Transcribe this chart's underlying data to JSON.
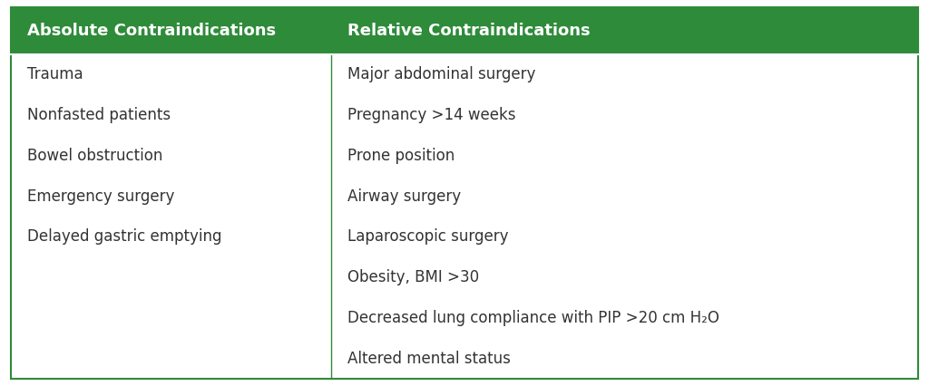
{
  "header_bg_color": "#2E8B3A",
  "header_text_color": "#FFFFFF",
  "body_bg_color": "#FFFFFF",
  "border_color": "#2E8B3A",
  "col1_header": "Absolute Contraindications",
  "col2_header": "Relative Contraindications",
  "col1_items": [
    "Trauma",
    "Nonfasted patients",
    "Bowel obstruction",
    "Emergency surgery",
    "Delayed gastric emptying",
    "",
    "",
    ""
  ],
  "col2_items": [
    "Major abdominal surgery",
    "Pregnancy >14 weeks",
    "Prone position",
    "Airway surgery",
    "Laparoscopic surgery",
    "Obesity, BMI >30",
    "Decreased lung compliance with PIP >20 cm H₂O",
    "Altered mental status"
  ],
  "header_fontsize": 13.0,
  "body_fontsize": 12.0,
  "fig_width": 10.24,
  "fig_height": 4.26,
  "dpi": 100,
  "header_color": "#2D8A3E",
  "text_color": "#333333",
  "border_lw": 1.5,
  "divider_lw": 1.0
}
